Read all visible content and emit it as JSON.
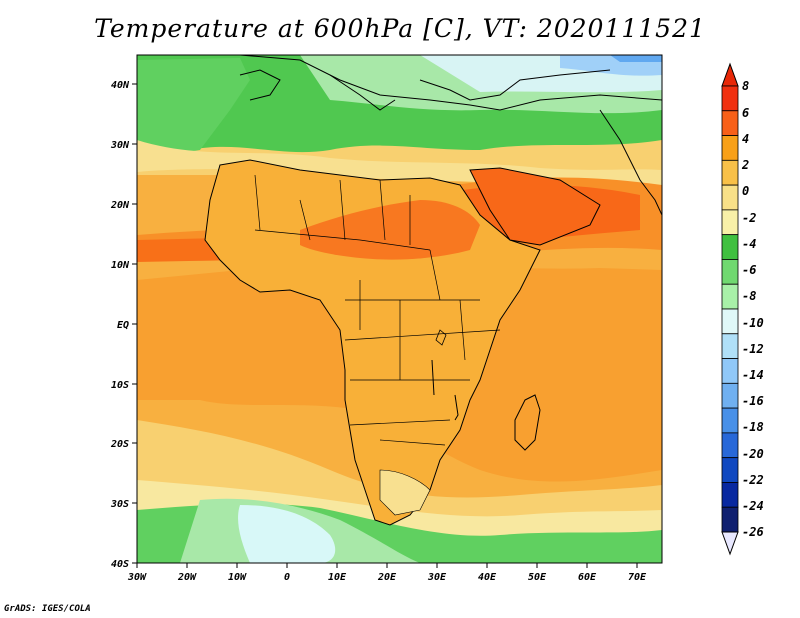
{
  "title": "Temperature at 600hPa [C], VT: 2020111521",
  "credit": "GrADS: IGES/COLA",
  "map": {
    "lon_labels": [
      "30W",
      "20W",
      "10W",
      "0",
      "10E",
      "20E",
      "30E",
      "40E",
      "50E",
      "60E",
      "70E"
    ],
    "lat_labels": [
      "40N",
      "30N",
      "20N",
      "10N",
      "EQ",
      "10S",
      "20S",
      "30S",
      "40S"
    ],
    "lon_range": [
      -30,
      75
    ],
    "lat_range": [
      -40,
      45
    ]
  },
  "colorbar": {
    "labels": [
      "8",
      "6",
      "4",
      "2",
      "0",
      "-2",
      "-4",
      "-6",
      "-8",
      "-10",
      "-12",
      "-14",
      "-16",
      "-18",
      "-20",
      "-22",
      "-24",
      "-26"
    ],
    "colors": [
      "#f03010",
      "#f86018",
      "#f8a018",
      "#f8c048",
      "#f8e088",
      "#f8f0a8",
      "#40c040",
      "#70d870",
      "#a8f0a8",
      "#e0f8f8",
      "#b0e0f8",
      "#90c8f8",
      "#70b0f0",
      "#4890e8",
      "#2868d8",
      "#1048c0",
      "#0828a0",
      "#102070"
    ],
    "top_color": "#e82808",
    "bottom_color": "#e8e8ff"
  }
}
